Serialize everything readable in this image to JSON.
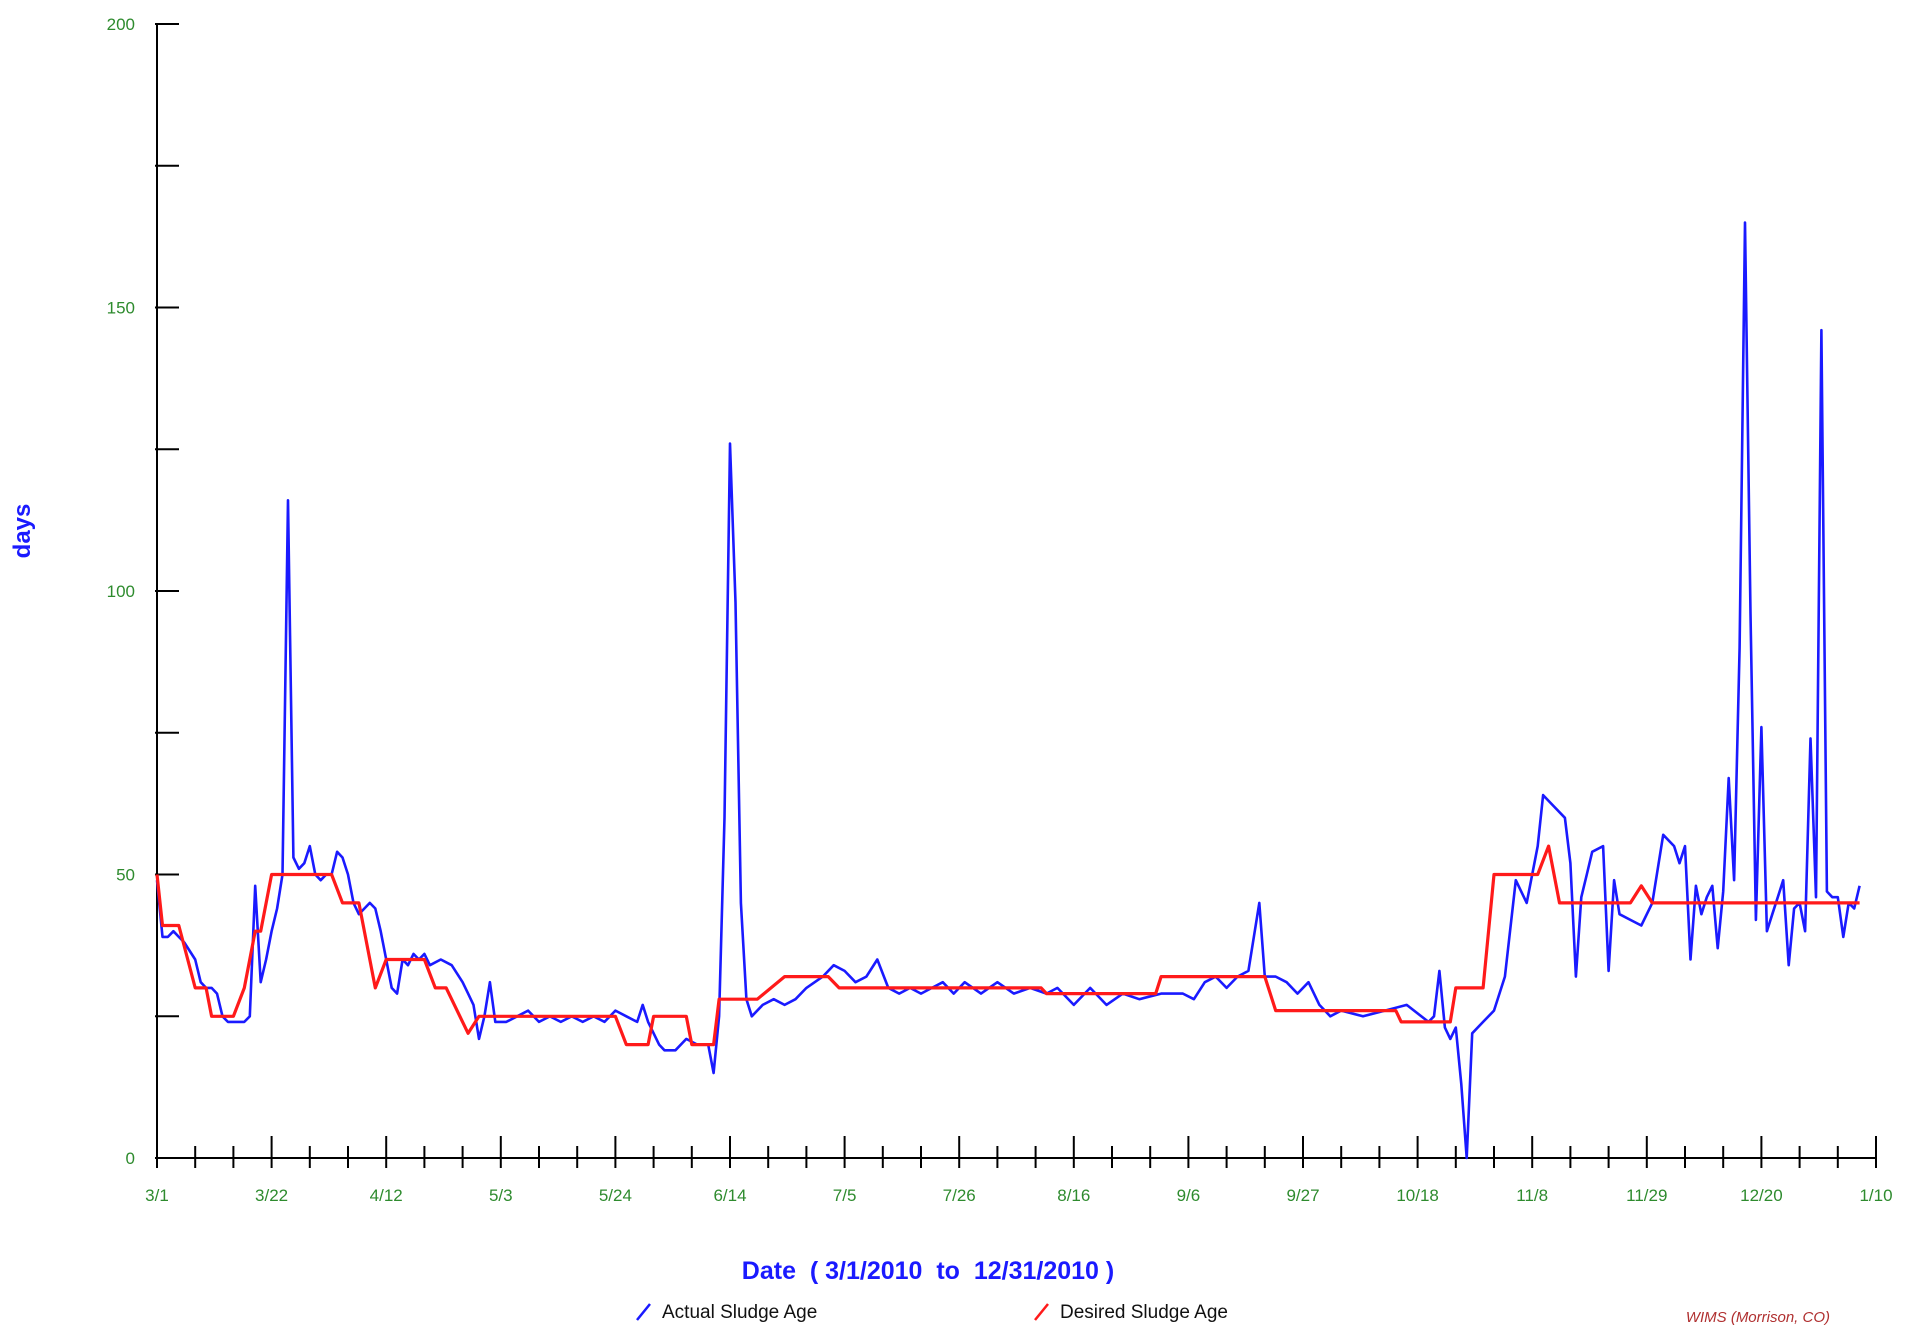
{
  "chart_data": {
    "type": "line",
    "title": "",
    "ylabel": "days",
    "xlabel": "Date  ( 3/1/2010  to  12/31/2010 )",
    "ylim": [
      0,
      200
    ],
    "y_ticks": [
      0,
      50,
      100,
      150,
      200
    ],
    "y_tick_labels": [
      "0",
      "50",
      "100",
      "150",
      "200"
    ],
    "x_range": [
      "2010-03-01",
      "2011-01-10"
    ],
    "x_ticks": [
      "2010-03-01",
      "2010-03-22",
      "2010-04-12",
      "2010-05-03",
      "2010-05-24",
      "2010-06-14",
      "2010-07-05",
      "2010-07-26",
      "2010-08-16",
      "2010-09-06",
      "2010-09-27",
      "2010-10-18",
      "2010-11-08",
      "2010-11-29",
      "2010-12-20",
      "2011-01-10"
    ],
    "x_tick_labels": [
      "3/1",
      "3/22",
      "4/12",
      "5/3",
      "5/24",
      "6/14",
      "7/5",
      "7/26",
      "8/16",
      "9/6",
      "9/27",
      "10/18",
      "11/8",
      "11/29",
      "12/20",
      "1/10"
    ],
    "grid": false,
    "legend_position": "bottom",
    "credit": "WIMS (Morrison, CO)",
    "series": [
      {
        "name": "Actual Sludge Age",
        "color": "#1a1aff",
        "points": [
          [
            "2010-03-01",
            49
          ],
          [
            "2010-03-02",
            39
          ],
          [
            "2010-03-03",
            39
          ],
          [
            "2010-03-04",
            40
          ],
          [
            "2010-03-05",
            39
          ],
          [
            "2010-03-06",
            38
          ],
          [
            "2010-03-08",
            35
          ],
          [
            "2010-03-09",
            31
          ],
          [
            "2010-03-10",
            30
          ],
          [
            "2010-03-11",
            30
          ],
          [
            "2010-03-12",
            29
          ],
          [
            "2010-03-13",
            25
          ],
          [
            "2010-03-14",
            24
          ],
          [
            "2010-03-15",
            24
          ],
          [
            "2010-03-16",
            24
          ],
          [
            "2010-03-17",
            24
          ],
          [
            "2010-03-18",
            25
          ],
          [
            "2010-03-19",
            48
          ],
          [
            "2010-03-20",
            31
          ],
          [
            "2010-03-21",
            35
          ],
          [
            "2010-03-22",
            40
          ],
          [
            "2010-03-23",
            44
          ],
          [
            "2010-03-24",
            50
          ],
          [
            "2010-03-25",
            116
          ],
          [
            "2010-03-26",
            53
          ],
          [
            "2010-03-27",
            51
          ],
          [
            "2010-03-28",
            52
          ],
          [
            "2010-03-29",
            55
          ],
          [
            "2010-03-30",
            50
          ],
          [
            "2010-03-31",
            49
          ],
          [
            "2010-04-01",
            50
          ],
          [
            "2010-04-02",
            50
          ],
          [
            "2010-04-03",
            54
          ],
          [
            "2010-04-04",
            53
          ],
          [
            "2010-04-05",
            50
          ],
          [
            "2010-04-06",
            45
          ],
          [
            "2010-04-07",
            43
          ],
          [
            "2010-04-08",
            44
          ],
          [
            "2010-04-09",
            45
          ],
          [
            "2010-04-10",
            44
          ],
          [
            "2010-04-11",
            40
          ],
          [
            "2010-04-12",
            35
          ],
          [
            "2010-04-13",
            30
          ],
          [
            "2010-04-14",
            29
          ],
          [
            "2010-04-15",
            35
          ],
          [
            "2010-04-16",
            34
          ],
          [
            "2010-04-17",
            36
          ],
          [
            "2010-04-18",
            35
          ],
          [
            "2010-04-19",
            36
          ],
          [
            "2010-04-20",
            34
          ],
          [
            "2010-04-22",
            35
          ],
          [
            "2010-04-24",
            34
          ],
          [
            "2010-04-26",
            31
          ],
          [
            "2010-04-27",
            29
          ],
          [
            "2010-04-28",
            27
          ],
          [
            "2010-04-29",
            21
          ],
          [
            "2010-04-30",
            25
          ],
          [
            "2010-05-01",
            31
          ],
          [
            "2010-05-02",
            24
          ],
          [
            "2010-05-04",
            24
          ],
          [
            "2010-05-06",
            25
          ],
          [
            "2010-05-08",
            26
          ],
          [
            "2010-05-10",
            24
          ],
          [
            "2010-05-12",
            25
          ],
          [
            "2010-05-14",
            24
          ],
          [
            "2010-05-16",
            25
          ],
          [
            "2010-05-18",
            24
          ],
          [
            "2010-05-20",
            25
          ],
          [
            "2010-05-22",
            24
          ],
          [
            "2010-05-24",
            26
          ],
          [
            "2010-05-26",
            25
          ],
          [
            "2010-05-28",
            24
          ],
          [
            "2010-05-29",
            27
          ],
          [
            "2010-05-30",
            24
          ],
          [
            "2010-06-01",
            20
          ],
          [
            "2010-06-02",
            19
          ],
          [
            "2010-06-04",
            19
          ],
          [
            "2010-06-06",
            21
          ],
          [
            "2010-06-08",
            20
          ],
          [
            "2010-06-10",
            20
          ],
          [
            "2010-06-11",
            15
          ],
          [
            "2010-06-12",
            25
          ],
          [
            "2010-06-13",
            60
          ],
          [
            "2010-06-14",
            126
          ],
          [
            "2010-06-15",
            98
          ],
          [
            "2010-06-16",
            45
          ],
          [
            "2010-06-17",
            28
          ],
          [
            "2010-06-18",
            25
          ],
          [
            "2010-06-20",
            27
          ],
          [
            "2010-06-22",
            28
          ],
          [
            "2010-06-24",
            27
          ],
          [
            "2010-06-26",
            28
          ],
          [
            "2010-06-28",
            30
          ],
          [
            "2010-07-01",
            32
          ],
          [
            "2010-07-03",
            34
          ],
          [
            "2010-07-05",
            33
          ],
          [
            "2010-07-07",
            31
          ],
          [
            "2010-07-09",
            32
          ],
          [
            "2010-07-11",
            35
          ],
          [
            "2010-07-13",
            30
          ],
          [
            "2010-07-15",
            29
          ],
          [
            "2010-07-17",
            30
          ],
          [
            "2010-07-19",
            29
          ],
          [
            "2010-07-21",
            30
          ],
          [
            "2010-07-23",
            31
          ],
          [
            "2010-07-25",
            29
          ],
          [
            "2010-07-27",
            31
          ],
          [
            "2010-07-30",
            29
          ],
          [
            "2010-08-02",
            31
          ],
          [
            "2010-08-05",
            29
          ],
          [
            "2010-08-08",
            30
          ],
          [
            "2010-08-11",
            29
          ],
          [
            "2010-08-13",
            30
          ],
          [
            "2010-08-16",
            27
          ],
          [
            "2010-08-19",
            30
          ],
          [
            "2010-08-22",
            27
          ],
          [
            "2010-08-25",
            29
          ],
          [
            "2010-08-28",
            28
          ],
          [
            "2010-09-01",
            29
          ],
          [
            "2010-09-05",
            29
          ],
          [
            "2010-09-07",
            28
          ],
          [
            "2010-09-09",
            31
          ],
          [
            "2010-09-11",
            32
          ],
          [
            "2010-09-13",
            30
          ],
          [
            "2010-09-15",
            32
          ],
          [
            "2010-09-17",
            33
          ],
          [
            "2010-09-19",
            45
          ],
          [
            "2010-09-20",
            32
          ],
          [
            "2010-09-22",
            32
          ],
          [
            "2010-09-24",
            31
          ],
          [
            "2010-09-26",
            29
          ],
          [
            "2010-09-28",
            31
          ],
          [
            "2010-09-30",
            27
          ],
          [
            "2010-10-02",
            25
          ],
          [
            "2010-10-04",
            26
          ],
          [
            "2010-10-08",
            25
          ],
          [
            "2010-10-12",
            26
          ],
          [
            "2010-10-16",
            27
          ],
          [
            "2010-10-20",
            24
          ],
          [
            "2010-10-21",
            25
          ],
          [
            "2010-10-22",
            33
          ],
          [
            "2010-10-23",
            23
          ],
          [
            "2010-10-24",
            21
          ],
          [
            "2010-10-25",
            23
          ],
          [
            "2010-10-26",
            13
          ],
          [
            "2010-10-27",
            0
          ],
          [
            "2010-10-28",
            22
          ],
          [
            "2010-10-30",
            24
          ],
          [
            "2010-11-01",
            26
          ],
          [
            "2010-11-03",
            32
          ],
          [
            "2010-11-05",
            49
          ],
          [
            "2010-11-07",
            45
          ],
          [
            "2010-11-09",
            55
          ],
          [
            "2010-11-10",
            64
          ],
          [
            "2010-11-12",
            62
          ],
          [
            "2010-11-14",
            60
          ],
          [
            "2010-11-15",
            52
          ],
          [
            "2010-11-16",
            32
          ],
          [
            "2010-11-17",
            46
          ],
          [
            "2010-11-18",
            50
          ],
          [
            "2010-11-19",
            54
          ],
          [
            "2010-11-21",
            55
          ],
          [
            "2010-11-22",
            33
          ],
          [
            "2010-11-23",
            49
          ],
          [
            "2010-11-24",
            43
          ],
          [
            "2010-11-26",
            42
          ],
          [
            "2010-11-28",
            41
          ],
          [
            "2010-11-30",
            45
          ],
          [
            "2010-12-02",
            57
          ],
          [
            "2010-12-04",
            55
          ],
          [
            "2010-12-05",
            52
          ],
          [
            "2010-12-06",
            55
          ],
          [
            "2010-12-07",
            35
          ],
          [
            "2010-12-08",
            48
          ],
          [
            "2010-12-09",
            43
          ],
          [
            "2010-12-10",
            46
          ],
          [
            "2010-12-11",
            48
          ],
          [
            "2010-12-12",
            37
          ],
          [
            "2010-12-13",
            47
          ],
          [
            "2010-12-14",
            67
          ],
          [
            "2010-12-15",
            49
          ],
          [
            "2010-12-16",
            90
          ],
          [
            "2010-12-17",
            165
          ],
          [
            "2010-12-18",
            96
          ],
          [
            "2010-12-19",
            42
          ],
          [
            "2010-12-20",
            76
          ],
          [
            "2010-12-21",
            40
          ],
          [
            "2010-12-22",
            43
          ],
          [
            "2010-12-23",
            46
          ],
          [
            "2010-12-24",
            49
          ],
          [
            "2010-12-25",
            34
          ],
          [
            "2010-12-26",
            44
          ],
          [
            "2010-12-27",
            45
          ],
          [
            "2010-12-28",
            40
          ],
          [
            "2010-12-29",
            74
          ],
          [
            "2010-12-30",
            46
          ],
          [
            "2010-12-31",
            146
          ],
          [
            "2011-01-01",
            47
          ],
          [
            "2011-01-02",
            46
          ],
          [
            "2011-01-03",
            46
          ],
          [
            "2011-01-04",
            39
          ],
          [
            "2011-01-05",
            45
          ],
          [
            "2011-01-06",
            44
          ],
          [
            "2011-01-07",
            48
          ]
        ]
      },
      {
        "name": "Desired Sludge Age",
        "color": "#ff1a1a",
        "points": [
          [
            "2010-03-01",
            50
          ],
          [
            "2010-03-02",
            41
          ],
          [
            "2010-03-05",
            41
          ],
          [
            "2010-03-08",
            30
          ],
          [
            "2010-03-10",
            30
          ],
          [
            "2010-03-11",
            25
          ],
          [
            "2010-03-15",
            25
          ],
          [
            "2010-03-17",
            30
          ],
          [
            "2010-03-19",
            40
          ],
          [
            "2010-03-20",
            40
          ],
          [
            "2010-03-22",
            50
          ],
          [
            "2010-03-29",
            50
          ],
          [
            "2010-04-02",
            50
          ],
          [
            "2010-04-04",
            45
          ],
          [
            "2010-04-07",
            45
          ],
          [
            "2010-04-10",
            30
          ],
          [
            "2010-04-12",
            35
          ],
          [
            "2010-04-19",
            35
          ],
          [
            "2010-04-21",
            30
          ],
          [
            "2010-04-23",
            30
          ],
          [
            "2010-04-25",
            26
          ],
          [
            "2010-04-27",
            22
          ],
          [
            "2010-04-29",
            25
          ],
          [
            "2010-05-20",
            25
          ],
          [
            "2010-05-24",
            25
          ],
          [
            "2010-05-26",
            20
          ],
          [
            "2010-05-30",
            20
          ],
          [
            "2010-05-31",
            25
          ],
          [
            "2010-06-06",
            25
          ],
          [
            "2010-06-07",
            20
          ],
          [
            "2010-06-11",
            20
          ],
          [
            "2010-06-12",
            28
          ],
          [
            "2010-06-19",
            28
          ],
          [
            "2010-06-24",
            32
          ],
          [
            "2010-07-02",
            32
          ],
          [
            "2010-07-04",
            30
          ],
          [
            "2010-08-10",
            30
          ],
          [
            "2010-08-11",
            29
          ],
          [
            "2010-08-31",
            29
          ],
          [
            "2010-09-01",
            32
          ],
          [
            "2010-09-20",
            32
          ],
          [
            "2010-09-22",
            26
          ],
          [
            "2010-10-14",
            26
          ],
          [
            "2010-10-15",
            24
          ],
          [
            "2010-10-24",
            24
          ],
          [
            "2010-10-25",
            30
          ],
          [
            "2010-10-30",
            30
          ],
          [
            "2010-11-01",
            50
          ],
          [
            "2010-11-09",
            50
          ],
          [
            "2010-11-11",
            55
          ],
          [
            "2010-11-13",
            45
          ],
          [
            "2010-11-26",
            45
          ],
          [
            "2010-11-28",
            48
          ],
          [
            "2010-11-30",
            45
          ],
          [
            "2011-01-07",
            45
          ]
        ]
      }
    ]
  }
}
